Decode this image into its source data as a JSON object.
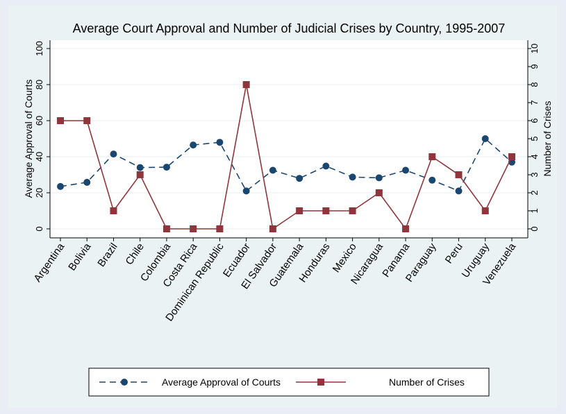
{
  "chart_data": {
    "type": "line",
    "title": "Average Court Approval and Number of Judicial Crises by Country, 1995-2007",
    "xlabel": "",
    "categories": [
      "Argentina",
      "Bolivia",
      "Brazil",
      "Chile",
      "Colombia",
      "Costa Rica",
      "Dominican Republic",
      "Ecuador",
      "El Salvador",
      "Guatemala",
      "Honduras",
      "Mexico",
      "Nicaragua",
      "Panama",
      "Paraguay",
      "Peru",
      "Uruguay",
      "Venezuela"
    ],
    "ylabel_left": "Average Approval of Courts",
    "ylabel_right": "Number of Crises",
    "ylim_left": [
      0,
      100
    ],
    "ylim_right": [
      0,
      10
    ],
    "yticks_left": [
      0,
      20,
      40,
      60,
      80,
      100
    ],
    "yticks_right": [
      0,
      1,
      2,
      3,
      4,
      5,
      6,
      7,
      8,
      9,
      10
    ],
    "grid": true,
    "legend_position": "bottom",
    "series": [
      {
        "name": "Average Approval of Courts",
        "axis": "left",
        "color": "#1a476f",
        "line_style": "dashed",
        "marker": "circle",
        "values": [
          23.5,
          25.8,
          41.5,
          34,
          34.2,
          46.5,
          48,
          21,
          32.5,
          28,
          34.8,
          28.7,
          28.3,
          32.5,
          27,
          21,
          50,
          37
        ]
      },
      {
        "name": "Number of Crises",
        "axis": "right",
        "color": "#90353b",
        "line_style": "solid",
        "marker": "square",
        "values": [
          6,
          6,
          1,
          3,
          0,
          0,
          0,
          8,
          0,
          1,
          1,
          1,
          2,
          0,
          4,
          3,
          1,
          4
        ]
      }
    ]
  }
}
